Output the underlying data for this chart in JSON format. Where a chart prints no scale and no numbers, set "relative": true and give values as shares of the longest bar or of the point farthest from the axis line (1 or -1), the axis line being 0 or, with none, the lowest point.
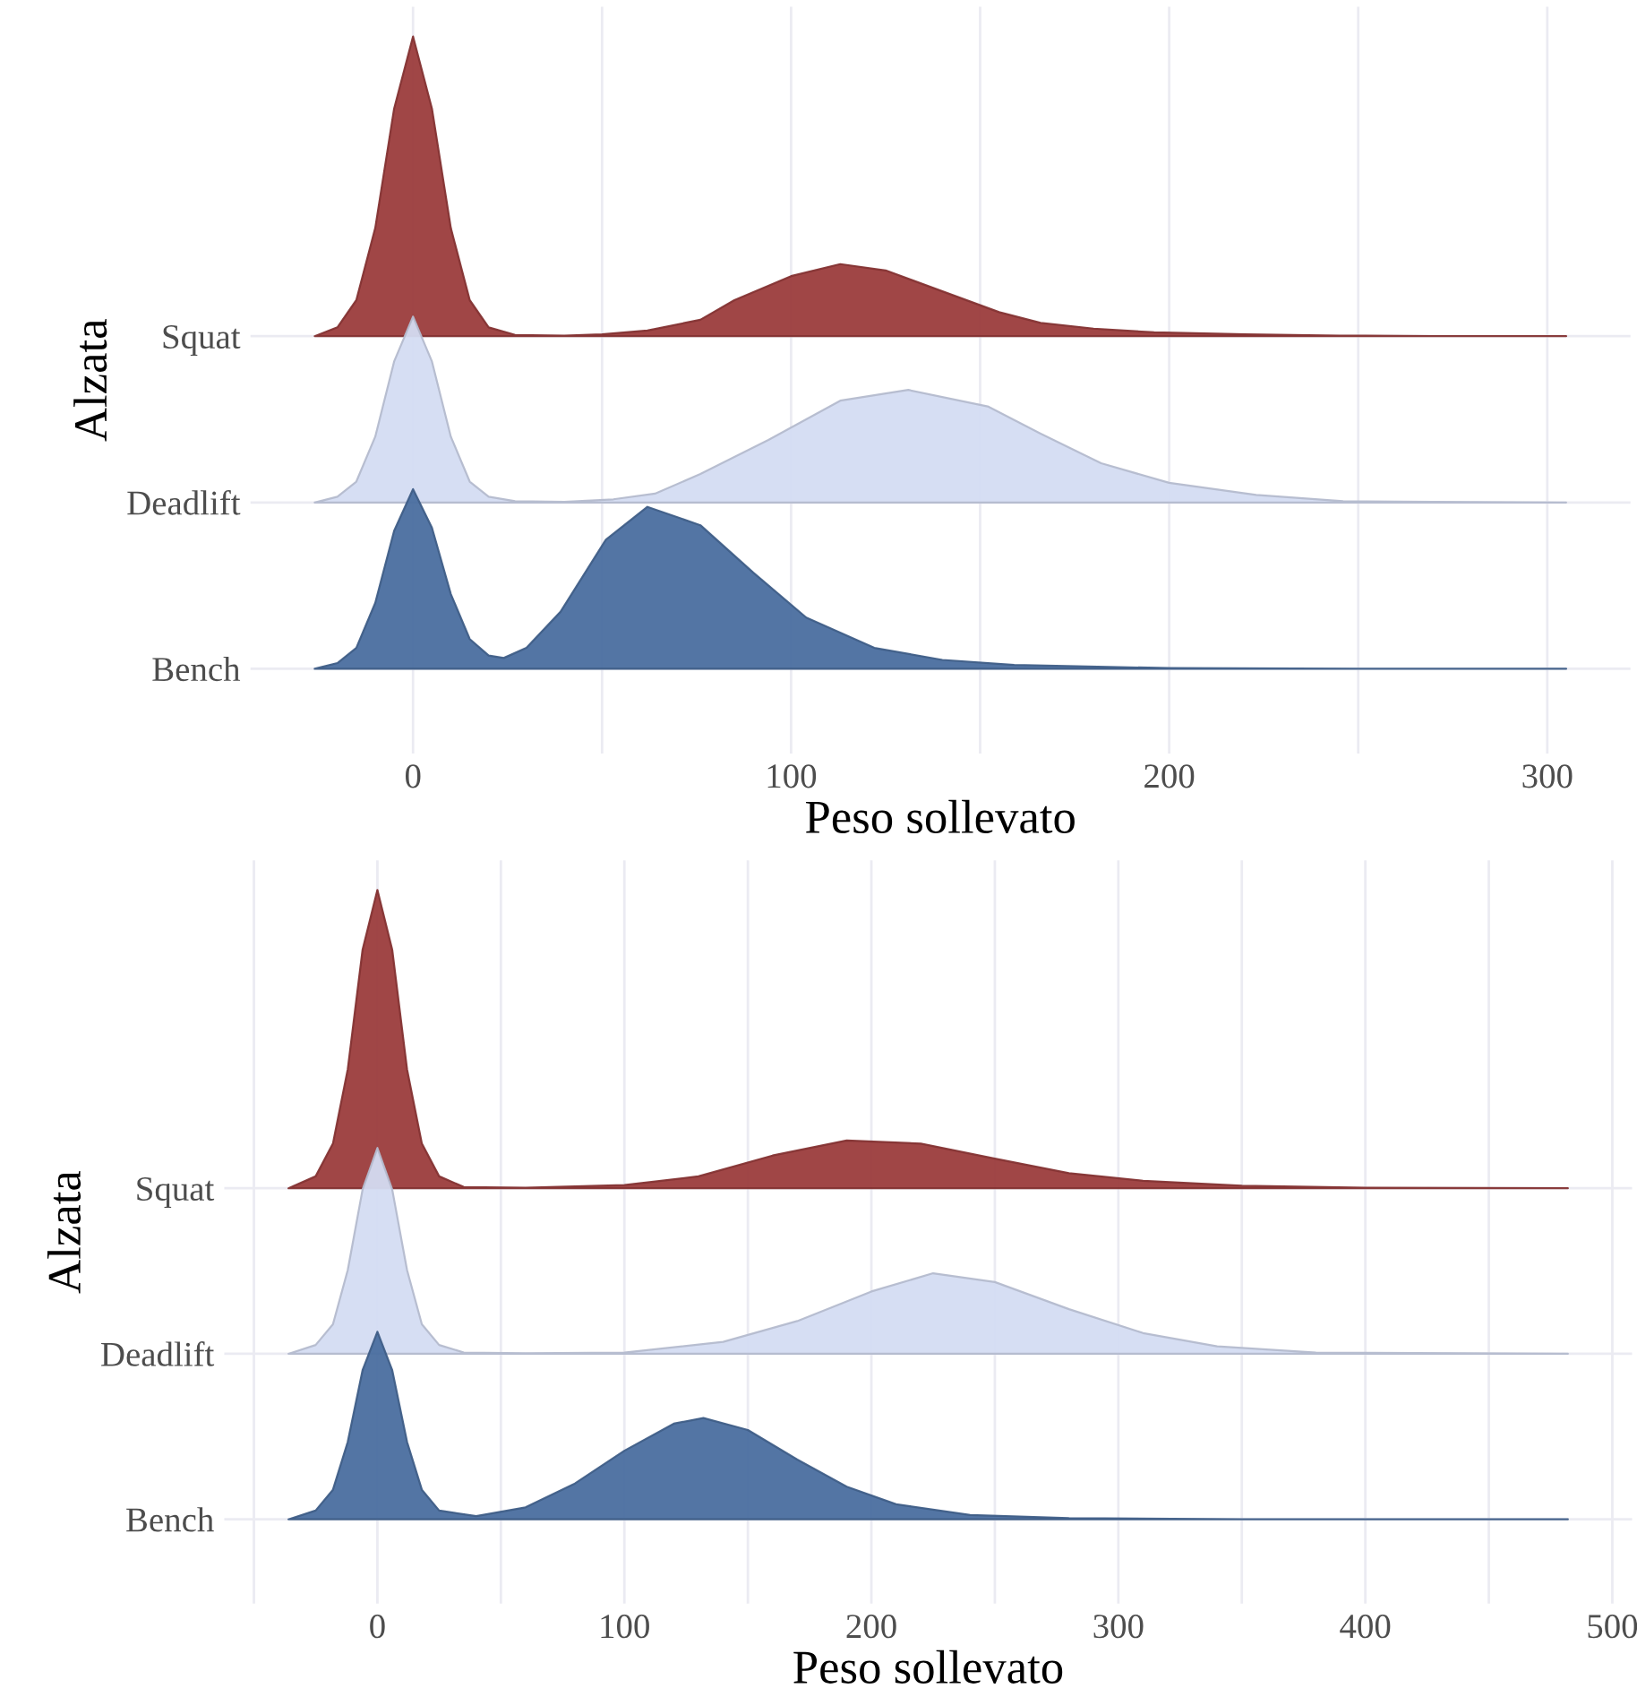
{
  "chart_data": [
    {
      "type": "area",
      "relative": true,
      "xlabel": "Peso sollevato",
      "ylabel": "Alzata",
      "y_categories": [
        "Squat",
        "Deadlift",
        "Bench"
      ],
      "xlim": [
        -43,
        322
      ],
      "xticks": [
        0,
        {
          "value": 50,
          "label": null
        },
        100,
        {
          "value": 150,
          "label": null
        },
        200,
        {
          "value": 250,
          "label": null
        },
        300
      ],
      "grid": true,
      "series": [
        {
          "color": "#9b3c3c",
          "x": [
            -26,
            -20,
            -15,
            -10,
            -5,
            0,
            5,
            10,
            15,
            20,
            27,
            40,
            50,
            62,
            76,
            85,
            100,
            113,
            125,
            140,
            155,
            166,
            180,
            196,
            220,
            245,
            270,
            305
          ],
          "values": [
            0.526,
            0.54,
            0.583,
            0.697,
            0.886,
            1.0,
            0.886,
            0.697,
            0.583,
            0.54,
            0.528,
            0.527,
            0.529,
            0.535,
            0.552,
            0.583,
            0.621,
            0.64,
            0.63,
            0.597,
            0.564,
            0.547,
            0.538,
            0.532,
            0.529,
            0.527,
            0.526,
            0.526
          ]
        },
        {
          "color": "#d4dcf2",
          "x": [
            -26,
            -20,
            -15,
            -10,
            -5,
            0,
            5,
            10,
            15,
            20,
            27,
            40,
            53,
            64,
            76,
            94,
            113,
            131,
            152,
            166,
            182,
            200,
            223,
            246,
            270,
            305
          ],
          "values": [
            0.263,
            0.272,
            0.296,
            0.367,
            0.486,
            0.557,
            0.486,
            0.367,
            0.296,
            0.272,
            0.265,
            0.264,
            0.268,
            0.277,
            0.308,
            0.362,
            0.424,
            0.441,
            0.415,
            0.372,
            0.325,
            0.294,
            0.275,
            0.265,
            0.264,
            0.263
          ]
        },
        {
          "color": "#4a6e9f",
          "x": [
            -26,
            -20,
            -15,
            -10,
            -5,
            0,
            5,
            10,
            15,
            20,
            24,
            30,
            39,
            51,
            62,
            76,
            90,
            104,
            122,
            140,
            159,
            200,
            250,
            305
          ],
          "values": [
            0,
            0.009,
            0.033,
            0.104,
            0.218,
            0.284,
            0.223,
            0.118,
            0.047,
            0.021,
            0.017,
            0.033,
            0.09,
            0.204,
            0.256,
            0.227,
            0.152,
            0.081,
            0.033,
            0.014,
            0.006,
            0.001,
            0,
            0
          ]
        }
      ]
    },
    {
      "type": "area",
      "relative": true,
      "xlabel": "Peso sollevato",
      "ylabel": "Alzata",
      "y_categories": [
        "Squat",
        "Deadlift",
        "Bench"
      ],
      "xlim": [
        -62,
        508
      ],
      "xticks": [
        {
          "value": -50,
          "label": null
        },
        0,
        {
          "value": 50,
          "label": null
        },
        100,
        {
          "value": 150,
          "label": null
        },
        200,
        {
          "value": 250,
          "label": null
        },
        300,
        {
          "value": 350,
          "label": null
        },
        400,
        {
          "value": 450,
          "label": null
        },
        500
      ],
      "grid": true,
      "series": [
        {
          "color": "#9b3c3c",
          "x": [
            -36,
            -25,
            -18,
            -12,
            -6,
            0,
            6,
            12,
            18,
            25,
            35,
            60,
            100,
            130,
            160,
            190,
            220,
            250,
            280,
            310,
            350,
            400,
            482
          ],
          "values": [
            0.526,
            0.545,
            0.597,
            0.715,
            0.905,
            1.0,
            0.905,
            0.715,
            0.597,
            0.545,
            0.528,
            0.527,
            0.531,
            0.545,
            0.578,
            0.602,
            0.597,
            0.573,
            0.55,
            0.538,
            0.53,
            0.527,
            0.526
          ]
        },
        {
          "color": "#d4dcf2",
          "x": [
            -36,
            -25,
            -18,
            -12,
            -6,
            0,
            6,
            12,
            18,
            25,
            35,
            60,
            100,
            140,
            170,
            200,
            225,
            250,
            280,
            310,
            340,
            380,
            482
          ],
          "values": [
            0.263,
            0.277,
            0.31,
            0.396,
            0.524,
            0.59,
            0.524,
            0.396,
            0.31,
            0.277,
            0.265,
            0.264,
            0.265,
            0.282,
            0.315,
            0.362,
            0.391,
            0.377,
            0.334,
            0.296,
            0.275,
            0.265,
            0.263
          ]
        },
        {
          "color": "#4a6e9f",
          "x": [
            -36,
            -25,
            -18,
            -12,
            -6,
            0,
            6,
            12,
            18,
            25,
            40,
            60,
            80,
            100,
            120,
            132,
            150,
            170,
            190,
            210,
            240,
            280,
            350,
            482
          ],
          "values": [
            0,
            0.014,
            0.047,
            0.123,
            0.237,
            0.298,
            0.237,
            0.123,
            0.047,
            0.014,
            0.005,
            0.019,
            0.057,
            0.109,
            0.152,
            0.161,
            0.142,
            0.095,
            0.052,
            0.024,
            0.007,
            0.002,
            0,
            0
          ]
        }
      ]
    }
  ]
}
